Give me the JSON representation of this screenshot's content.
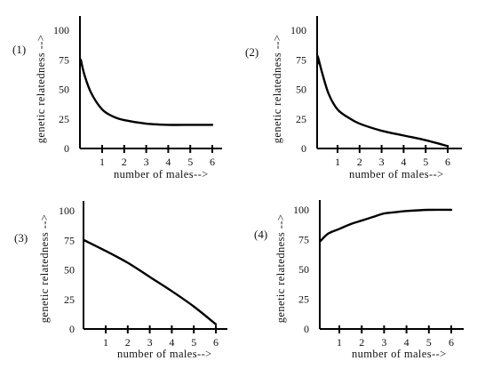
{
  "chart_data": [
    {
      "type": "line",
      "panel_label": "(1)",
      "xlabel": "number of males-->",
      "ylabel": "genetic relatedness -->",
      "x_ticks": [
        "1",
        "2",
        "3",
        "4",
        "5",
        "6"
      ],
      "y_ticks": [
        "0",
        "25",
        "50",
        "75",
        "100"
      ],
      "xlim": [
        0,
        6.2
      ],
      "ylim": [
        0,
        100
      ],
      "series": [
        {
          "x": [
            0,
            0.2,
            0.5,
            1,
            1.5,
            2,
            3,
            4,
            5,
            6
          ],
          "y": [
            75,
            62,
            47,
            33,
            27,
            24,
            21,
            20,
            20,
            20
          ]
        }
      ]
    },
    {
      "type": "line",
      "panel_label": "(2)",
      "xlabel": "number of males-->",
      "ylabel": "genetic relatedness -->",
      "x_ticks": [
        "1",
        "2",
        "3",
        "4",
        "5",
        "6"
      ],
      "y_ticks": [
        "0",
        "25",
        "50",
        "75",
        "100"
      ],
      "xlim": [
        0,
        6.2
      ],
      "ylim": [
        0,
        100
      ],
      "series": [
        {
          "x": [
            0,
            0.1,
            0.3,
            0.6,
            1,
            1.5,
            2,
            3,
            4,
            5,
            6
          ],
          "y": [
            72,
            78,
            64,
            46,
            33,
            26,
            21,
            15,
            11,
            7,
            2
          ]
        }
      ]
    },
    {
      "type": "line",
      "panel_label": "(3)",
      "xlabel": "number of males-->",
      "ylabel": "genetic relatedness -->",
      "x_ticks": [
        "1",
        "2",
        "3",
        "4",
        "5",
        "6"
      ],
      "y_ticks": [
        "0",
        "25",
        "50",
        "75",
        "100"
      ],
      "xlim": [
        0,
        6.2
      ],
      "ylim": [
        0,
        100
      ],
      "series": [
        {
          "x": [
            0,
            1,
            2,
            3,
            4,
            5,
            6
          ],
          "y": [
            75,
            66,
            56,
            44,
            32,
            19,
            4
          ]
        }
      ]
    },
    {
      "type": "line",
      "panel_label": "(4)",
      "xlabel": "number of males-->",
      "ylabel": "genetic relatedness -->",
      "x_ticks": [
        "1",
        "2",
        "3",
        "4",
        "5",
        "6"
      ],
      "y_ticks": [
        "0",
        "25",
        "50",
        "75",
        "100"
      ],
      "xlim": [
        0,
        6.2
      ],
      "ylim": [
        0,
        100
      ],
      "series": [
        {
          "x": [
            0,
            0.5,
            1,
            1.5,
            2,
            2.5,
            3,
            3.5,
            4,
            5,
            6
          ],
          "y": [
            74,
            80,
            84,
            88,
            91,
            94,
            97,
            98,
            99,
            100,
            100
          ]
        }
      ]
    }
  ]
}
